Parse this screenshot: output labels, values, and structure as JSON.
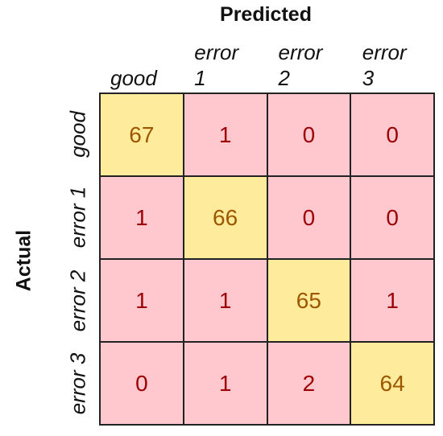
{
  "chart_data": {
    "type": "heatmap",
    "title": "Predicted",
    "xlabel": "Predicted",
    "ylabel": "Actual",
    "x_categories": [
      "good",
      "error 1",
      "error 2",
      "error 3"
    ],
    "y_categories": [
      "good",
      "error 1",
      "error 2",
      "error 3"
    ],
    "matrix": [
      [
        67,
        1,
        0,
        0
      ],
      [
        1,
        66,
        0,
        0
      ],
      [
        1,
        1,
        65,
        1
      ],
      [
        0,
        1,
        2,
        64
      ]
    ]
  },
  "colors": {
    "diagonal_fill": "#ffeb9c",
    "diagonal_text": "#9c5700",
    "off_diagonal_fill": "#ffc7ce",
    "off_diagonal_text": "#9c0006"
  }
}
